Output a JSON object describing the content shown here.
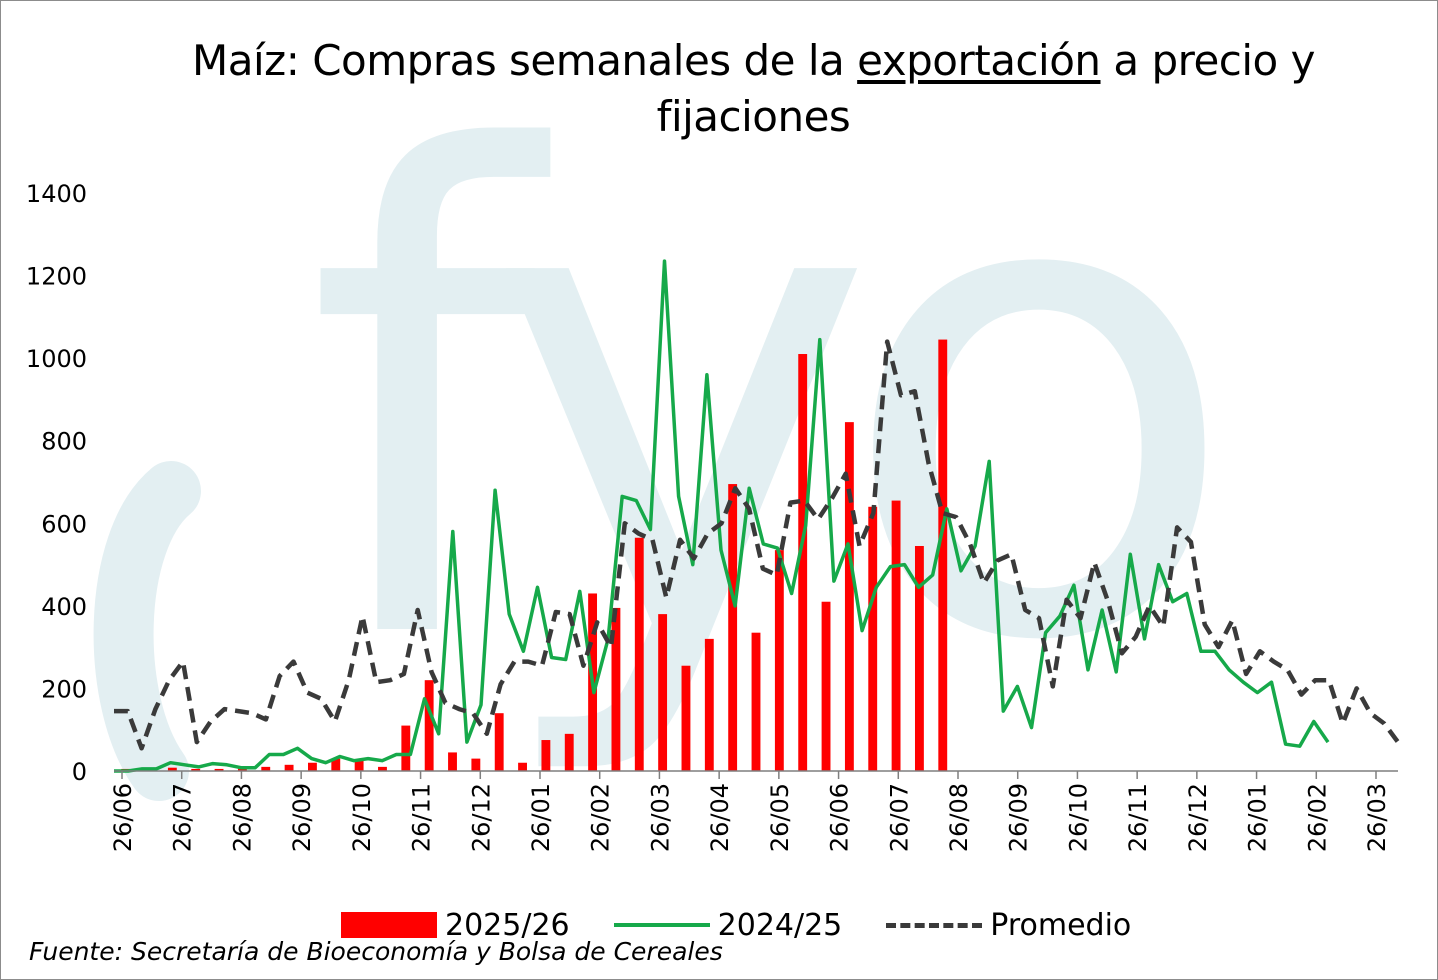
{
  "title": {
    "prefix": "Maíz: Compras semanales de la ",
    "underlined": "exportación",
    "suffix": " a precio y fijaciones"
  },
  "source": "Fuente: Secretaría de Bioeconomía y Bolsa de Cereales",
  "watermark": "fyo",
  "chart_data": {
    "type": "bar+line",
    "ylim": [
      0,
      1400
    ],
    "yticks": [
      0,
      200,
      400,
      600,
      800,
      1000,
      1200,
      1400
    ],
    "xlabels": [
      "26/06",
      "26/07",
      "26/08",
      "26/09",
      "26/10",
      "26/11",
      "26/12",
      "26/01",
      "26/02",
      "26/03",
      "26/04",
      "26/05",
      "26/06",
      "26/07",
      "26/08",
      "26/09",
      "26/10",
      "26/11",
      "26/12",
      "26/01",
      "26/02",
      "26/03"
    ],
    "weeks_total": 55,
    "colors": {
      "bars": "#ff0000",
      "green": "#16a94a",
      "avg": "#3a3a3a",
      "watermark": "#e3eff2"
    },
    "series": [
      {
        "name": "2025/26",
        "kind": "bar",
        "values": [
          5,
          5,
          8,
          5,
          5,
          8,
          10,
          15,
          20,
          30,
          25,
          10,
          110,
          220,
          45,
          30,
          140,
          20,
          75,
          90,
          430,
          395,
          565,
          380,
          255,
          320,
          695,
          335,
          535,
          1010,
          410,
          845,
          640,
          655,
          545,
          1045
        ]
      },
      {
        "name": "2024/25",
        "kind": "line",
        "values": [
          0,
          0,
          5,
          5,
          20,
          15,
          10,
          18,
          15,
          8,
          8,
          40,
          40,
          55,
          30,
          20,
          35,
          25,
          30,
          25,
          40,
          40,
          175,
          90,
          580,
          70,
          160,
          680,
          380,
          290,
          445,
          275,
          270,
          435,
          190,
          320,
          665,
          655,
          585,
          1235,
          665,
          500,
          960,
          535,
          400,
          685,
          550,
          540,
          430,
          595,
          1045,
          460,
          550,
          340,
          445,
          495,
          500,
          445,
          475,
          635,
          485,
          545,
          750,
          145,
          205,
          105,
          335,
          375,
          450,
          245,
          390,
          240,
          525,
          320,
          500,
          410,
          430,
          290,
          290,
          245,
          215,
          190,
          215,
          65,
          60,
          120,
          70
        ]
      },
      {
        "name": "Promedio",
        "kind": "dashed-line",
        "values": [
          145,
          145,
          55,
          150,
          220,
          265,
          70,
          120,
          150,
          145,
          140,
          125,
          230,
          265,
          190,
          175,
          120,
          220,
          375,
          215,
          220,
          235,
          390,
          240,
          165,
          150,
          140,
          90,
          210,
          265,
          265,
          255,
          385,
          380,
          255,
          360,
          300,
          600,
          575,
          560,
          420,
          560,
          515,
          575,
          600,
          685,
          635,
          490,
          475,
          650,
          655,
          610,
          660,
          720,
          545,
          625,
          1040,
          910,
          920,
          745,
          625,
          615,
          550,
          455,
          510,
          525,
          390,
          370,
          205,
          415,
          370,
          505,
          410,
          285,
          325,
          400,
          350,
          590,
          555,
          355,
          300,
          365,
          235,
          290,
          265,
          245,
          185,
          220,
          220,
          115,
          200,
          140,
          115,
          70
        ]
      }
    ]
  }
}
